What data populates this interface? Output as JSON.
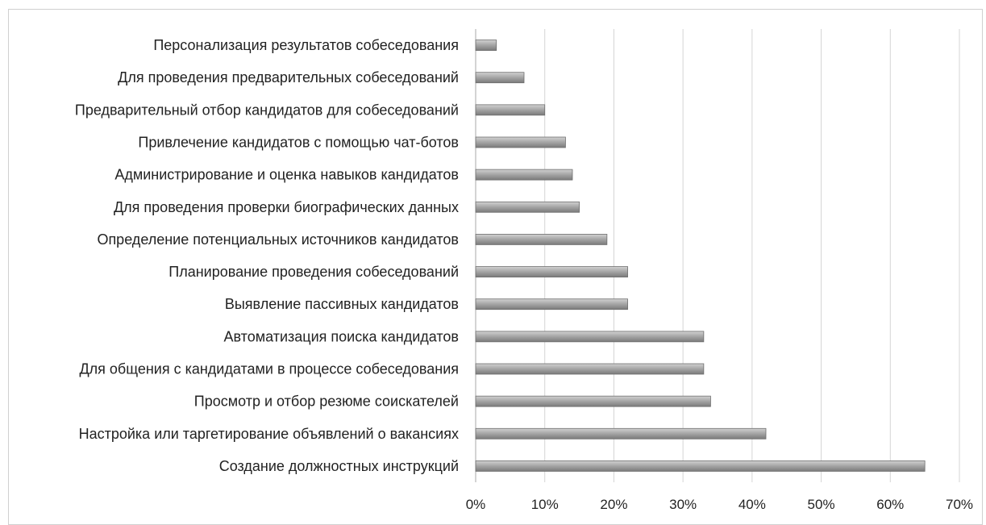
{
  "chart_data": {
    "type": "bar",
    "orientation": "horizontal",
    "title": "",
    "xlabel": "",
    "ylabel": "",
    "categories": [
      "Персонализация результатов собеседования",
      "Для проведения предварительных собеседований",
      "Предварительный отбор кандидатов для собеседований",
      "Привлечение кандидатов с помощью чат-ботов",
      "Администрирование и оценка навыков кандидатов",
      "Для проведения проверки биографических данных",
      "Определение потенциальных источников кандидатов",
      "Планирование проведения собеседований",
      "Выявление пассивных кандидатов",
      "Автоматизация поиска кандидатов",
      "Для общения с кандидатами в процессе собеседования",
      "Просмотр и отбор резюме соискателей",
      "Настройка или таргетирование объявлений о вакансиях",
      "Создание должностных инструкций"
    ],
    "values": [
      3,
      7,
      10,
      13,
      14,
      15,
      19,
      22,
      22,
      33,
      33,
      34,
      42,
      65
    ],
    "value_unit": "%",
    "xlim": [
      0,
      70
    ],
    "xticks": [
      "0%",
      "10%",
      "20%",
      "30%",
      "40%",
      "50%",
      "60%",
      "70%"
    ],
    "grid": "vertical",
    "legend": "none",
    "bar_color": "#a6a6a6"
  }
}
